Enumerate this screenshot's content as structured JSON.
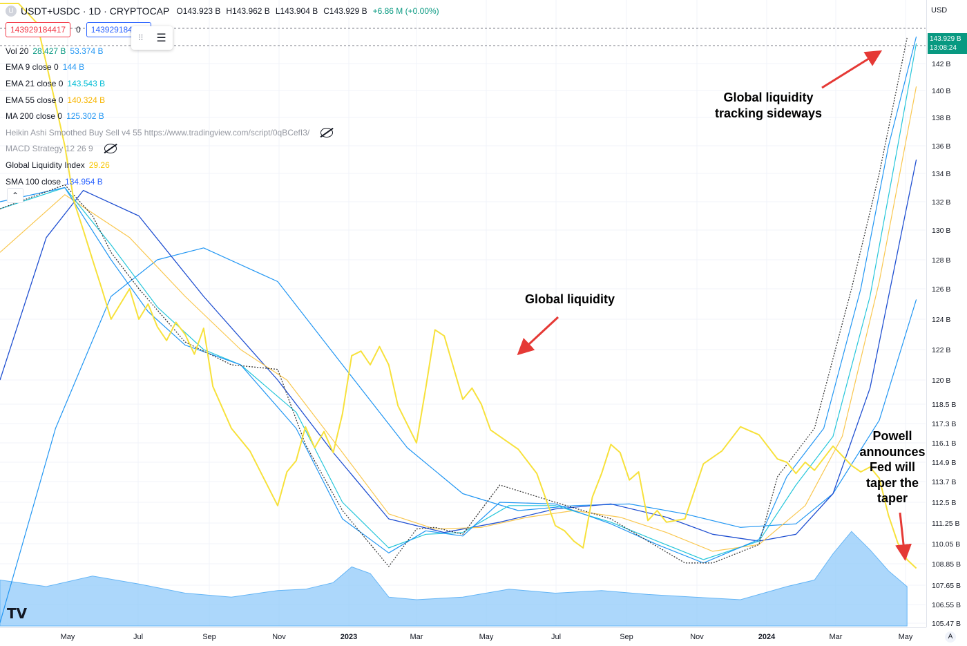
{
  "header": {
    "symbol_badge": "U",
    "title": "USDT+USDC · 1D · CRYPTOCAP",
    "open_label": "O",
    "open": "143.923 B",
    "high_label": "H",
    "high": "143.962 B",
    "low_label": "L",
    "low": "143.904 B",
    "close_label": "C",
    "close": "143.929 B",
    "change": "+6.86 M (+0.00%)"
  },
  "trade": {
    "sell_price": "143929184417",
    "spread": "0",
    "buy_price": "143929184417"
  },
  "indicators": [
    {
      "name": "Vol 20",
      "values": [
        "28.427 B",
        "53.374 B"
      ],
      "colors": [
        "#089981",
        "#2196f3"
      ],
      "dim": false
    },
    {
      "name": "EMA 9 close 0",
      "values": [
        "144 B"
      ],
      "colors": [
        "#2196f3"
      ],
      "dim": false
    },
    {
      "name": "EMA 21 close 0",
      "values": [
        "143.543 B"
      ],
      "colors": [
        "#00bcd4"
      ],
      "dim": false
    },
    {
      "name": "EMA 55 close 0",
      "values": [
        "140.324 B"
      ],
      "colors": [
        "#f7b500"
      ],
      "dim": false
    },
    {
      "name": "MA 200 close 0",
      "values": [
        "125.302 B"
      ],
      "colors": [
        "#2196f3"
      ],
      "dim": false
    },
    {
      "name": "Heikin Ashi Smoothed Buy Sell v4 55 https://www.tradingview.com/script/0qBCefI3/",
      "values": [],
      "colors": [],
      "dim": true,
      "hidden": true
    },
    {
      "name": "MACD Strategy 12 26 9",
      "values": [],
      "colors": [],
      "dim": true,
      "hidden": true
    },
    {
      "name": "Global Liquidity Index",
      "values": [
        "29.26"
      ],
      "colors": [
        "#f7c600"
      ],
      "dim": false
    },
    {
      "name": "SMA 100 close",
      "values": [
        "134.954 B"
      ],
      "colors": [
        "#2962ff"
      ],
      "dim": false
    }
  ],
  "annotations": {
    "global_liquidity": "Global liquidity",
    "sideways": [
      "Global liquidity",
      "tracking sideways"
    ],
    "powell": [
      "Powell",
      "announces",
      "Fed will",
      "taper the",
      "taper"
    ]
  },
  "price_axis": {
    "currency": "USD",
    "last_price": "143.929 B",
    "countdown": "13:08:24"
  },
  "colors": {
    "liquidity": "#f7e13b",
    "ema9": "#2196f3",
    "ema21": "#26c6da",
    "ema55": "#f9c74f",
    "ma200": "#2196f3",
    "sma100": "#1f4fd1",
    "volume": "#90caf9",
    "arrow": "#e53935",
    "up": "#089981"
  },
  "chart_data": {
    "type": "line",
    "title": "USDT+USDC · 1D · CRYPTOCAP",
    "y_unit": "USD",
    "y_ticks": [
      "142 B",
      "140 B",
      "138 B",
      "136 B",
      "134 B",
      "132 B",
      "130 B",
      "128 B",
      "126 B",
      "124 B",
      "122 B",
      "120 B",
      "118.5 B",
      "117.3 B",
      "116.1 B",
      "114.9 B",
      "113.7 B",
      "112.5 B",
      "111.25 B",
      "110.05 B",
      "108.85 B",
      "107.65 B",
      "106.55 B",
      "105.47 B"
    ],
    "x_ticks": [
      "May",
      "Jul",
      "Sep",
      "Nov",
      "2023",
      "Mar",
      "May",
      "Jul",
      "Sep",
      "Nov",
      "2024",
      "Mar",
      "May"
    ],
    "series": [
      {
        "name": "USDT+USDC",
        "t": [
          0,
          0.07,
          0.1,
          0.12,
          0.15,
          0.2,
          0.25,
          0.3,
          0.33,
          0.37,
          0.42,
          0.45,
          0.47,
          0.5,
          0.54,
          0.6,
          0.66,
          0.7,
          0.74,
          0.77,
          0.82,
          0.84,
          0.88,
          0.92,
          0.95,
          0.98
        ],
        "v": [
          131.5,
          133.2,
          131.0,
          128.5,
          126.0,
          122.5,
          121.0,
          120.7,
          116.0,
          112.0,
          108.7,
          110.9,
          111.0,
          110.6,
          113.5,
          112.5,
          111.5,
          110.2,
          108.9,
          108.9,
          110.0,
          114.0,
          117.0,
          126.0,
          134.0,
          143.9
        ]
      },
      {
        "name": "EMA 9 close 0",
        "t": [
          0,
          0.07,
          0.12,
          0.16,
          0.2,
          0.26,
          0.32,
          0.37,
          0.42,
          0.46,
          0.5,
          0.54,
          0.6,
          0.66,
          0.71,
          0.76,
          0.82,
          0.85,
          0.89,
          0.93,
          0.96,
          0.99
        ],
        "v": [
          132.0,
          133.0,
          128.0,
          124.5,
          122.3,
          121.0,
          117.0,
          111.5,
          109.5,
          110.8,
          110.5,
          112.5,
          112.4,
          111.2,
          110.0,
          108.9,
          110.3,
          114.0,
          117.0,
          126.0,
          136.0,
          144.0
        ]
      },
      {
        "name": "EMA 21 close 0",
        "t": [
          0,
          0.07,
          0.12,
          0.17,
          0.22,
          0.26,
          0.32,
          0.37,
          0.42,
          0.46,
          0.5,
          0.55,
          0.6,
          0.66,
          0.71,
          0.76,
          0.82,
          0.86,
          0.9,
          0.94,
          0.97,
          0.99
        ],
        "v": [
          131.5,
          133.0,
          129.0,
          124.8,
          122.0,
          121.0,
          118.0,
          112.5,
          109.8,
          110.6,
          110.7,
          112.3,
          112.3,
          111.3,
          110.2,
          109.1,
          110.2,
          113.5,
          116.5,
          125.5,
          136.0,
          143.5
        ]
      },
      {
        "name": "EMA 55 close 0",
        "t": [
          0,
          0.07,
          0.14,
          0.2,
          0.26,
          0.31,
          0.37,
          0.42,
          0.47,
          0.52,
          0.57,
          0.62,
          0.67,
          0.72,
          0.77,
          0.82,
          0.87,
          0.91,
          0.95,
          0.99
        ],
        "v": [
          128.5,
          132.5,
          129.5,
          125.5,
          122.0,
          120.0,
          115.5,
          111.8,
          110.9,
          111.0,
          111.6,
          112.0,
          111.6,
          110.7,
          109.6,
          110.0,
          112.3,
          116.5,
          126.5,
          140.3
        ]
      },
      {
        "name": "MA 200 close 0",
        "t": [
          0,
          0.06,
          0.12,
          0.17,
          0.22,
          0.3,
          0.37,
          0.44,
          0.5,
          0.56,
          0.62,
          0.68,
          0.74,
          0.8,
          0.86,
          0.9,
          0.95,
          0.99
        ],
        "v": [
          105.5,
          117.0,
          125.5,
          128.0,
          128.8,
          126.5,
          121.0,
          115.8,
          113.0,
          112.0,
          112.3,
          112.4,
          111.8,
          111.0,
          111.2,
          113.0,
          117.5,
          125.3
        ]
      },
      {
        "name": "SMA 100 close",
        "t": [
          0,
          0.05,
          0.09,
          0.15,
          0.22,
          0.3,
          0.36,
          0.42,
          0.48,
          0.54,
          0.6,
          0.66,
          0.72,
          0.77,
          0.82,
          0.86,
          0.9,
          0.94,
          0.99
        ],
        "v": [
          120.0,
          129.5,
          132.8,
          131.0,
          125.5,
          120.0,
          115.5,
          111.5,
          110.7,
          111.3,
          112.1,
          112.4,
          111.6,
          110.6,
          110.2,
          110.6,
          113.0,
          119.5,
          135.0
        ]
      },
      {
        "name": "Global Liquidity Index",
        "t": [
          0.0,
          0.02,
          0.04,
          0.06,
          0.07,
          0.08,
          0.09,
          0.1,
          0.11,
          0.12,
          0.13,
          0.14,
          0.15,
          0.16,
          0.17,
          0.18,
          0.19,
          0.2,
          0.21,
          0.22,
          0.23,
          0.25,
          0.27,
          0.3,
          0.31,
          0.32,
          0.33,
          0.34,
          0.35,
          0.36,
          0.37,
          0.38,
          0.39,
          0.4,
          0.41,
          0.42,
          0.43,
          0.45,
          0.46,
          0.47,
          0.48,
          0.5,
          0.51,
          0.52,
          0.53,
          0.54,
          0.56,
          0.58,
          0.6,
          0.61,
          0.62,
          0.63,
          0.64,
          0.65,
          0.66,
          0.67,
          0.68,
          0.69,
          0.7,
          0.71,
          0.72,
          0.74,
          0.76,
          0.78,
          0.8,
          0.82,
          0.84,
          0.85,
          0.86,
          0.87,
          0.88,
          0.9,
          0.92,
          0.93,
          0.94,
          0.95,
          0.96,
          0.97,
          0.98,
          0.99
        ],
        "v": [
          161,
          152,
          145,
          139,
          136,
          132,
          130,
          128,
          126,
          124,
          125,
          126,
          124,
          125,
          123.5,
          122.6,
          123.8,
          123.0,
          121.7,
          123.4,
          119.6,
          117.0,
          115.6,
          112.3,
          114.3,
          115.0,
          117.1,
          115.8,
          116.8,
          115.5,
          117.9,
          121.6,
          121.9,
          121.0,
          122.2,
          121.0,
          118.4,
          116.1,
          119.5,
          123.3,
          122.9,
          118.8,
          119.5,
          118.5,
          116.9,
          116.5,
          115.7,
          114.2,
          111.1,
          110.8,
          110.2,
          109.8,
          112.8,
          114.2,
          116.0,
          115.5,
          113.8,
          114.3,
          111.4,
          112.0,
          111.3,
          111.5,
          114.8,
          115.6,
          117.1,
          116.6,
          115.1,
          114.9,
          114.2,
          114.9,
          114.4,
          115.9,
          114.7,
          114.3,
          114.6,
          113.9,
          111.7,
          110.1,
          109.1,
          108.6
        ]
      }
    ],
    "volume": {
      "name": "Vol 20",
      "t": [
        0,
        0.05,
        0.1,
        0.15,
        0.2,
        0.25,
        0.3,
        0.33,
        0.36,
        0.38,
        0.4,
        0.42,
        0.45,
        0.5,
        0.55,
        0.6,
        0.65,
        0.7,
        0.75,
        0.8,
        0.85,
        0.88,
        0.9,
        0.92,
        0.94,
        0.96,
        0.98
      ],
      "v": [
        0.35,
        0.3,
        0.38,
        0.32,
        0.25,
        0.22,
        0.27,
        0.28,
        0.33,
        0.45,
        0.4,
        0.22,
        0.2,
        0.22,
        0.28,
        0.25,
        0.27,
        0.24,
        0.22,
        0.2,
        0.3,
        0.35,
        0.55,
        0.72,
        0.58,
        0.42,
        0.3
      ]
    },
    "ylim": [
      105.47,
      143.93
    ],
    "grid": true,
    "legend": "top-left"
  }
}
